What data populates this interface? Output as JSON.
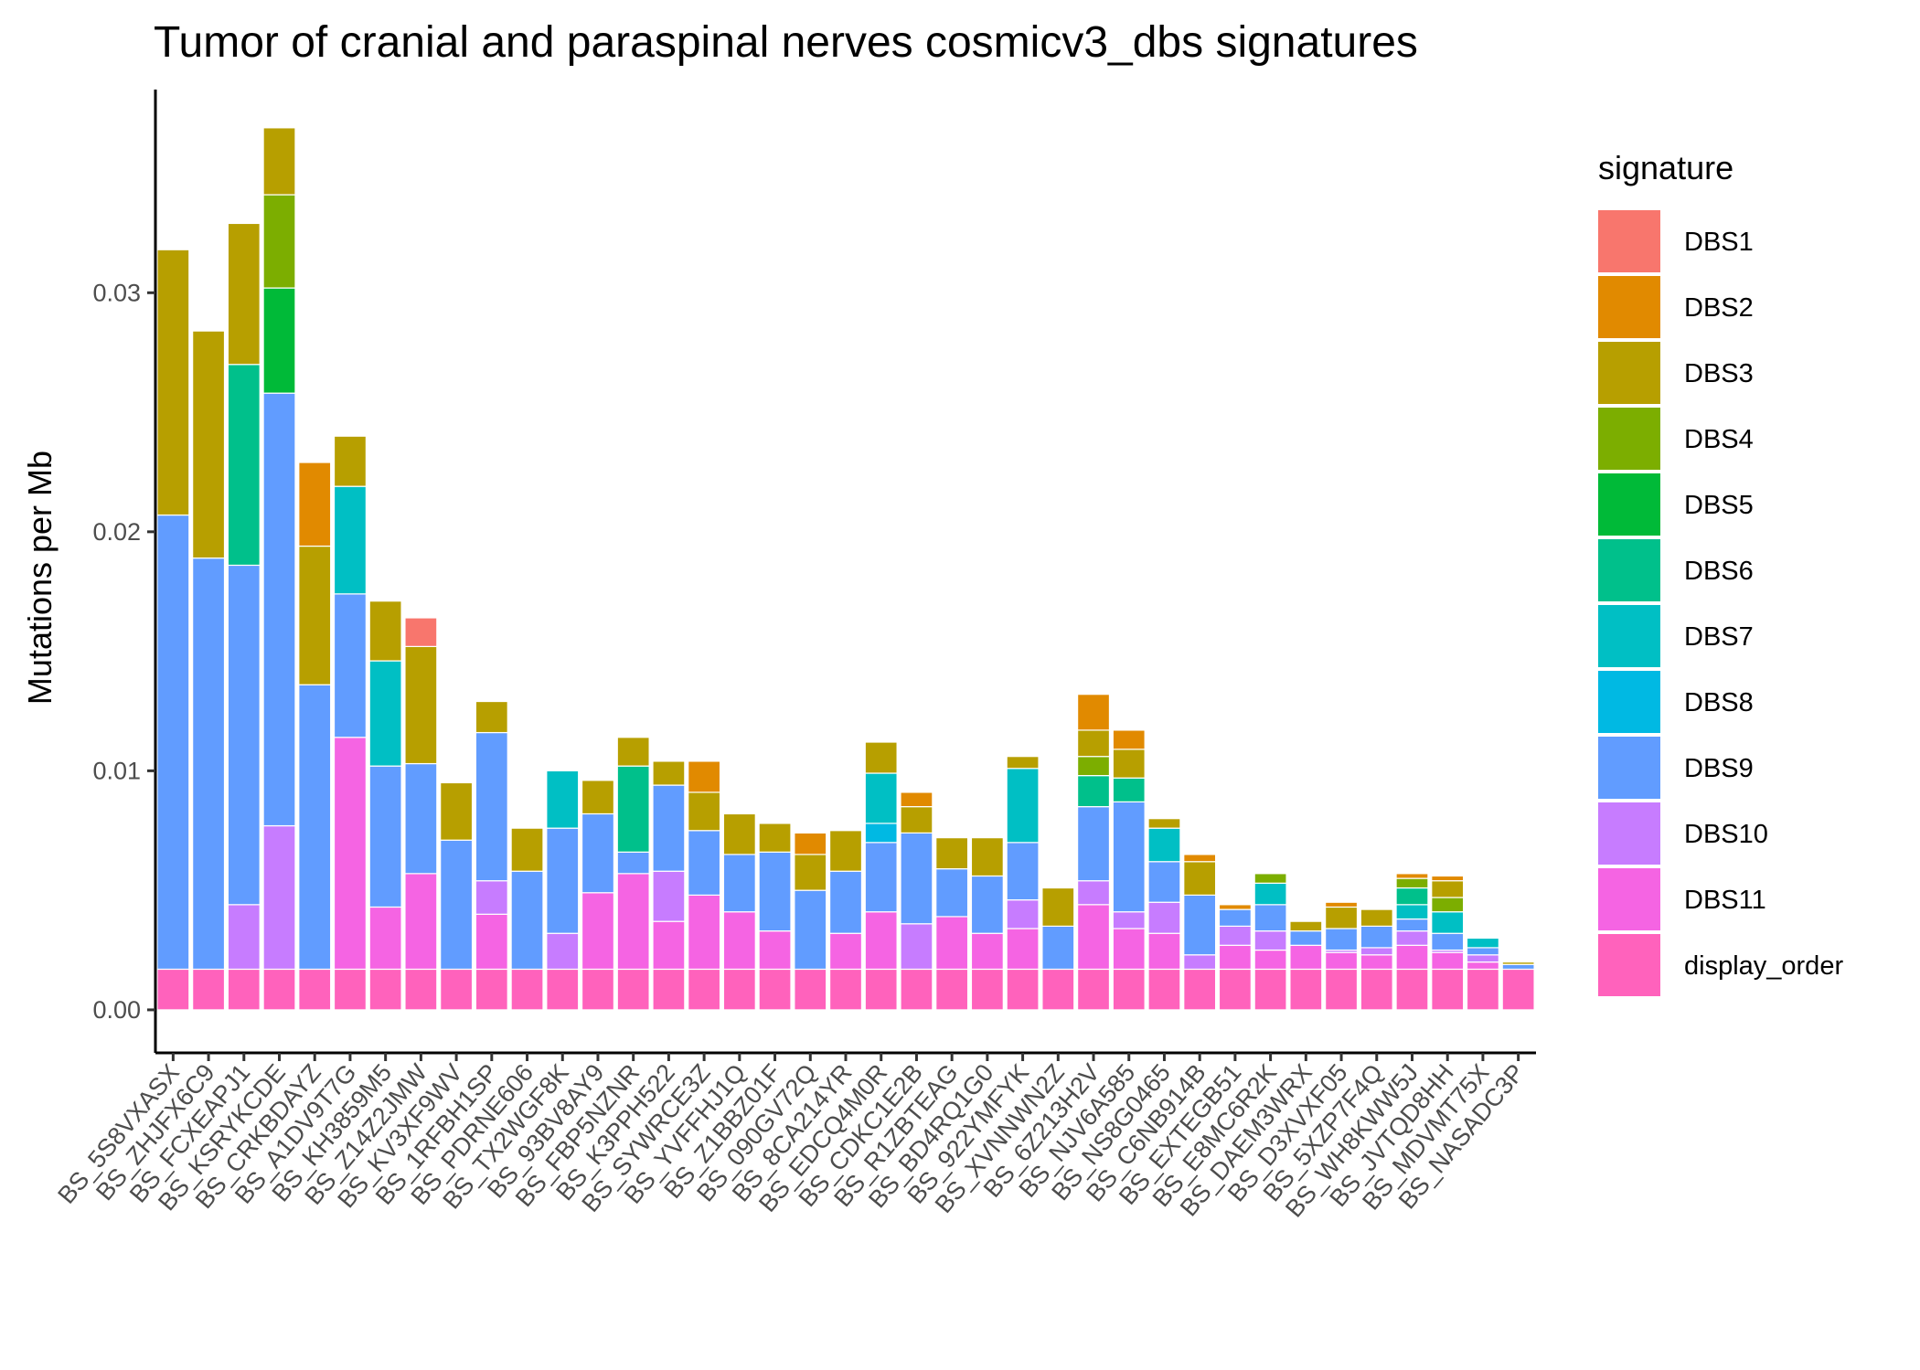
{
  "chart_data": {
    "type": "bar",
    "stacked": true,
    "title": "Tumor of cranial and paraspinal nerves cosmicv3_dbs signatures",
    "ylabel": "Mutations per Mb",
    "xlabel": "",
    "ylim": [
      -0.0018,
      0.0385
    ],
    "yticks": [
      0.0,
      0.01,
      0.02,
      0.03
    ],
    "ytick_labels": [
      "0.00",
      "0.01",
      "0.02",
      "0.03"
    ],
    "grid": false,
    "legend": {
      "title": "signature",
      "position": "right"
    },
    "categories": [
      "BS_5S8VXASX",
      "BS_ZHJFX6C9",
      "BS_FCXEAPJ1",
      "BS_KSRYKCDE",
      "BS_CRKBDAYZ",
      "BS_A1DV9T7G",
      "BS_KH3859M5",
      "BS_Z14Z2JMW",
      "BS_KV3XF9WV",
      "BS_1RFBH1SP",
      "BS_PDRNE606",
      "BS_TX2WGF8K",
      "BS_93BV8AY9",
      "BS_FBP5NZNR",
      "BS_K3PPH522",
      "BS_SYWRCE3Z",
      "BS_YVFFHJ1Q",
      "BS_Z1BBZ01F",
      "BS_090GV72Q",
      "BS_8CA214YR",
      "BS_EDCQ4M0R",
      "BS_CDKC1E2B",
      "BS_R1ZBTEAG",
      "BS_BD4RQ1G0",
      "BS_922YMFYK",
      "BS_XVNNWN2Z",
      "BS_6Z213H2V",
      "BS_NJV6A585",
      "BS_NS8G0465",
      "BS_C6NB914B",
      "BS_EXTEGB51",
      "BS_E8MC6R2K",
      "BS_DAEM3WRX",
      "BS_D3XVXF05",
      "BS_5XZP7F4Q",
      "BS_WH8KWW5J",
      "BS_JVTQD8HH",
      "BS_MDVMT75X",
      "BS_NASADC3P"
    ],
    "series": [
      {
        "name": "display_order",
        "color": "#FF62BC",
        "values": [
          0.0017,
          0.0017,
          0.0017,
          0.0017,
          0.0017,
          0.0017,
          0.0017,
          0.0017,
          0.0017,
          0.0017,
          0.0017,
          0.0017,
          0.0017,
          0.0017,
          0.0017,
          0.0017,
          0.0017,
          0.0017,
          0.0017,
          0.0017,
          0.0017,
          0.0017,
          0.0017,
          0.0017,
          0.0017,
          0.0017,
          0.0017,
          0.0017,
          0.0017,
          0.0017,
          0.0017,
          0.0017,
          0.0017,
          0.0017,
          0.0017,
          0.0017,
          0.0017,
          0.0017,
          0.0017
        ]
      },
      {
        "name": "DBS11",
        "color": "#F564E3",
        "values": [
          0,
          0,
          0,
          0,
          0,
          0.0097,
          0.0026,
          0.004,
          0,
          0.0023,
          0,
          0,
          0.0032,
          0.004,
          0.002,
          0.0031,
          0.0024,
          0.0016,
          0,
          0.0015,
          0.0024,
          0,
          0.0022,
          0.0015,
          0.0017,
          0,
          0.0027,
          0.0017,
          0.0015,
          0,
          0.001,
          0.0008,
          0.001,
          0.0007,
          0.0006,
          0.001,
          0.0007,
          0.0003,
          0
        ]
      },
      {
        "name": "DBS10",
        "color": "#C77CFF",
        "values": [
          0,
          0,
          0.0027,
          0.006,
          0,
          0,
          0,
          0,
          0,
          0.0014,
          0,
          0.0015,
          0,
          0,
          0.0021,
          0,
          0,
          0,
          0,
          0,
          0,
          0.0019,
          0,
          0,
          0.0012,
          0,
          0.001,
          0.0007,
          0.0013,
          0.0006,
          0.0008,
          0.0008,
          0,
          0.0001,
          0.0003,
          0.0006,
          0.0001,
          0.0003,
          0
        ]
      },
      {
        "name": "DBS9",
        "color": "#619CFF",
        "values": [
          0.019,
          0.0172,
          0.0142,
          0.0181,
          0.0119,
          0.006,
          0.0059,
          0.0046,
          0.0054,
          0.0062,
          0.0041,
          0.0044,
          0.0033,
          0.0009,
          0.0036,
          0.0027,
          0.0024,
          0.0033,
          0.0033,
          0.0026,
          0.0029,
          0.0038,
          0.002,
          0.0024,
          0.0024,
          0.0018,
          0.0031,
          0.0046,
          0.0017,
          0.0025,
          0.0007,
          0.0011,
          0.0006,
          0.0009,
          0.0009,
          0.0005,
          0.0007,
          0.0003,
          0.0002
        ]
      },
      {
        "name": "DBS8",
        "color": "#00B9E3",
        "values": [
          0,
          0,
          0,
          0,
          0,
          0,
          0,
          0,
          0,
          0,
          0,
          0,
          0,
          0,
          0,
          0,
          0,
          0,
          0,
          0,
          0.0008,
          0,
          0,
          0,
          0,
          0,
          0,
          0,
          0,
          0,
          0,
          0,
          0,
          0,
          0,
          0,
          0,
          0,
          0
        ]
      },
      {
        "name": "DBS7",
        "color": "#00BFC4",
        "values": [
          0,
          0,
          0,
          0,
          0,
          0.0045,
          0.0044,
          0,
          0,
          0,
          0,
          0.0024,
          0,
          0,
          0,
          0,
          0,
          0,
          0,
          0,
          0.0021,
          0,
          0,
          0,
          0.0031,
          0,
          0,
          0,
          0.0014,
          0,
          0,
          0.0009,
          0,
          0,
          0,
          0.0006,
          0.0009,
          0.0004,
          0
        ]
      },
      {
        "name": "DBS6",
        "color": "#00C08B",
        "values": [
          0,
          0,
          0.0084,
          0,
          0,
          0,
          0,
          0,
          0,
          0,
          0,
          0,
          0,
          0.0036,
          0,
          0,
          0,
          0,
          0,
          0,
          0,
          0,
          0,
          0,
          0,
          0,
          0.0013,
          0.001,
          0,
          0,
          0,
          0,
          0,
          0,
          0,
          0.0007,
          0,
          0,
          0
        ]
      },
      {
        "name": "DBS5",
        "color": "#00BA38",
        "values": [
          0,
          0,
          0,
          0.0044,
          0,
          0,
          0,
          0,
          0,
          0,
          0,
          0,
          0,
          0,
          0,
          0,
          0,
          0,
          0,
          0,
          0,
          0,
          0,
          0,
          0,
          0,
          0,
          0,
          0,
          0,
          0,
          0,
          0,
          0,
          0,
          0,
          0,
          0,
          0
        ]
      },
      {
        "name": "DBS4",
        "color": "#7CAE00",
        "values": [
          0,
          0,
          0,
          0.0039,
          0,
          0,
          0,
          0,
          0,
          0,
          0,
          0,
          0,
          0,
          0,
          0,
          0,
          0,
          0,
          0,
          0,
          0,
          0,
          0,
          0,
          0,
          0.0008,
          0,
          0,
          0,
          0,
          0.0004,
          0,
          0,
          0,
          0.0004,
          0.0006,
          0,
          0
        ]
      },
      {
        "name": "DBS3",
        "color": "#B79F00",
        "values": [
          0.0111,
          0.0095,
          0.0059,
          0.0028,
          0.0058,
          0.0021,
          0.0025,
          0.0049,
          0.0024,
          0.0013,
          0.0018,
          0,
          0.0014,
          0.0012,
          0.001,
          0.0016,
          0.0017,
          0.0012,
          0.0015,
          0.0017,
          0.0013,
          0.0011,
          0.0013,
          0.0016,
          0.0005,
          0.0016,
          0.0011,
          0.0012,
          0.0004,
          0.0014,
          0,
          0,
          0.0004,
          0.0009,
          0.0007,
          0,
          0.0007,
          0,
          0.0001
        ]
      },
      {
        "name": "DBS2",
        "color": "#E18A00",
        "values": [
          0,
          0,
          0,
          0,
          0.0035,
          0,
          0,
          0,
          0,
          0,
          0,
          0,
          0,
          0,
          0,
          0.0013,
          0,
          0,
          0.0009,
          0,
          0,
          0.0006,
          0,
          0,
          0,
          0,
          0.0015,
          0.0008,
          0,
          0.0003,
          0.0002,
          0,
          0,
          0.0002,
          0,
          0.0002,
          0.0002,
          0,
          0
        ]
      },
      {
        "name": "DBS1",
        "color": "#F8766D",
        "values": [
          0,
          0,
          0,
          0,
          0,
          0,
          0,
          0.0012,
          0,
          0,
          0,
          0,
          0,
          0,
          0,
          0,
          0,
          0,
          0,
          0,
          0,
          0,
          0,
          0,
          0,
          0,
          0,
          0,
          0,
          0,
          0,
          0,
          0,
          0,
          0,
          0,
          0,
          0,
          0
        ]
      }
    ],
    "legend_entries": [
      {
        "name": "DBS1",
        "color": "#F8766D"
      },
      {
        "name": "DBS2",
        "color": "#E18A00"
      },
      {
        "name": "DBS3",
        "color": "#B79F00"
      },
      {
        "name": "DBS4",
        "color": "#7CAE00"
      },
      {
        "name": "DBS5",
        "color": "#00BA38"
      },
      {
        "name": "DBS6",
        "color": "#00C08B"
      },
      {
        "name": "DBS7",
        "color": "#00BFC4"
      },
      {
        "name": "DBS8",
        "color": "#00B9E3"
      },
      {
        "name": "DBS9",
        "color": "#619CFF"
      },
      {
        "name": "DBS10",
        "color": "#C77CFF"
      },
      {
        "name": "DBS11",
        "color": "#F564E3"
      },
      {
        "name": "display_order",
        "color": "#FF62BC"
      }
    ]
  }
}
